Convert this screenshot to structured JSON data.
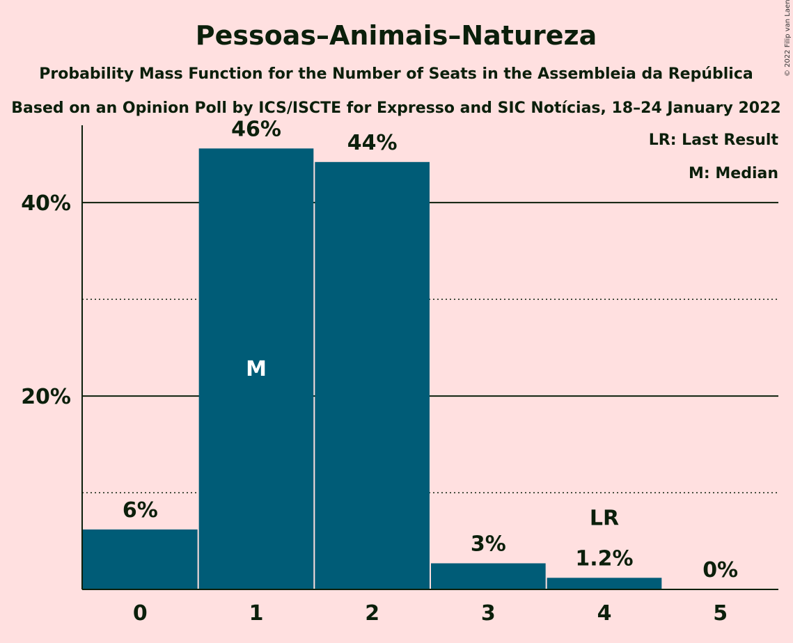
{
  "copyright": "© 2022 Filip van Laenen",
  "colors": {
    "background": "#FFE0E0",
    "bar": "#005C77",
    "text": "#0b1f0b"
  },
  "chart_data": {
    "type": "bar",
    "title": "Pessoas–Animais–Natureza",
    "subtitle": "Probability Mass Function for the Number of Seats in the Assembleia da República",
    "subtitle2": "Based on an Opinion Poll by ICS/ISCTE for Expresso and SIC Notícias, 18–24 January 2022",
    "categories": [
      "0",
      "1",
      "2",
      "3",
      "4",
      "5"
    ],
    "values": [
      6.2,
      45.6,
      44.2,
      2.7,
      1.2,
      0.0
    ],
    "value_labels": [
      "6%",
      "46%",
      "44%",
      "3%",
      "1.2%",
      "0%"
    ],
    "ylim": [
      0,
      48
    ],
    "yticks": [
      20,
      40
    ],
    "ytick_labels": [
      "20%",
      "40%"
    ],
    "minor_grid": [
      10,
      30
    ],
    "median_index": 1,
    "median_label": "M",
    "last_result_index": 4,
    "last_result_label": "LR",
    "legend": [
      "LR: Last Result",
      "M: Median"
    ],
    "legend_position": "top-right",
    "xlabel": "",
    "ylabel": ""
  }
}
